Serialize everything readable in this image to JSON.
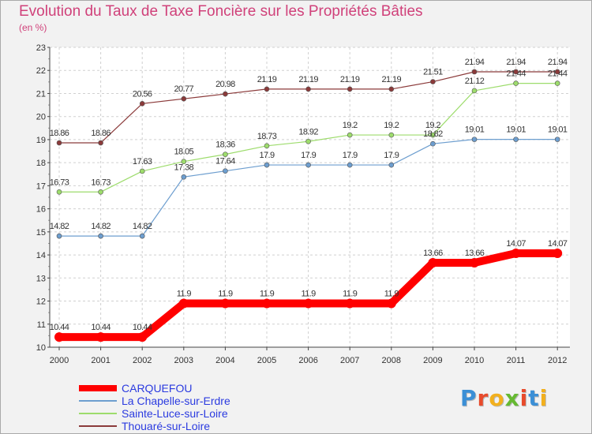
{
  "title": "Evolution du Taux de Taxe Foncière sur les Propriétés Bâties",
  "subtitle": "(en %)",
  "logo": [
    "P",
    "r",
    "o",
    "x",
    "i",
    "t",
    "i"
  ],
  "logo_colors": [
    "#3b8fd6",
    "#e84b2c",
    "#f2b01e",
    "#66b932",
    "#e84b2c",
    "#3b8fd6",
    "#f2b01e"
  ],
  "chart_data": {
    "type": "line",
    "title": "Evolution du Taux de Taxe Foncière sur les Propriétés Bâties",
    "ylabel": "(en %)",
    "xlabel": "",
    "x": [
      "2000",
      "2001",
      "2002",
      "2003",
      "2004",
      "2005",
      "2006",
      "2007",
      "2008",
      "2009",
      "2010",
      "2011",
      "2012"
    ],
    "ylim": [
      10,
      23
    ],
    "yticks": [
      "10",
      "11",
      "12",
      "13",
      "14",
      "15",
      "16",
      "17",
      "18",
      "19",
      "20",
      "21",
      "22",
      "23"
    ],
    "series": [
      {
        "name": "CARQUEFOU",
        "color": "#ff0000",
        "values": [
          10.44,
          10.44,
          10.44,
          11.9,
          11.9,
          11.9,
          11.9,
          11.9,
          11.9,
          13.66,
          13.66,
          14.07,
          14.07
        ],
        "labels": [
          "10.44",
          "10.44",
          "10.44",
          "11.9",
          "11.9",
          "11.9",
          "11.9",
          "11.9",
          "11.9",
          "13.66",
          "13.66",
          "14.07",
          "14.07"
        ]
      },
      {
        "name": "La Chapelle-sur-Erdre",
        "color": "#6d9ecf",
        "values": [
          14.82,
          14.82,
          14.82,
          17.38,
          17.64,
          17.9,
          17.9,
          17.9,
          17.9,
          18.82,
          19.01,
          19.01,
          19.01
        ],
        "labels": [
          "14.82",
          "14.82",
          "14.82",
          "17.38",
          "17.64",
          "17.9",
          "17.9",
          "17.9",
          "17.9",
          "18.82",
          "19.01",
          "19.01",
          "19.01"
        ]
      },
      {
        "name": "Sainte-Luce-sur-Loire",
        "color": "#9ddc6c",
        "values": [
          16.73,
          16.73,
          17.63,
          18.05,
          18.36,
          18.73,
          18.92,
          19.2,
          19.2,
          19.2,
          21.12,
          21.44,
          21.44
        ],
        "labels": [
          "16.73",
          "16.73",
          "17.63",
          "18.05",
          "18.36",
          "18.73",
          "18.92",
          "19.2",
          "19.2",
          "19.2",
          "21.12",
          "21.44",
          "21.44"
        ]
      },
      {
        "name": "Thouaré-sur-Loire",
        "color": "#8b3a3a",
        "values": [
          18.86,
          18.86,
          20.56,
          20.77,
          20.98,
          21.19,
          21.19,
          21.19,
          21.19,
          21.51,
          21.94,
          21.94,
          21.94
        ],
        "labels": [
          "18.86",
          "18.86",
          "20.56",
          "20.77",
          "20.98",
          "21.19",
          "21.19",
          "21.19",
          "21.19",
          "21.51",
          "21.94",
          "21.94",
          "21.94"
        ]
      }
    ],
    "legend_position": "bottom-left"
  },
  "colors": {
    "title": "#d0417a",
    "legend_text": "#2b3be0",
    "grid": "#d0d0d0",
    "axis": "#444444"
  }
}
